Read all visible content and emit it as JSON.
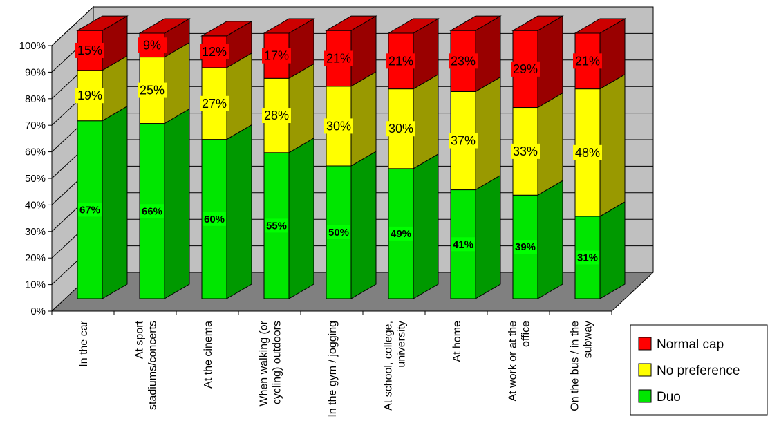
{
  "chart_data": {
    "type": "bar",
    "stacked": true,
    "three_d": true,
    "categories": [
      "In the car",
      "At sport stadiums/concerts",
      "At the cinema",
      "When walking (or cycling) outdoors",
      "In the gym / jogging",
      "At school, college, university",
      "At home",
      "At work or at the office",
      "On the bus / in the subway"
    ],
    "category_lines": [
      [
        "In the car"
      ],
      [
        "At sport",
        "stadiums/concerts"
      ],
      [
        "At the cinema"
      ],
      [
        "When walking (or",
        "cycling) outdoors"
      ],
      [
        "In the gym / jogging"
      ],
      [
        "At school, college,",
        "university"
      ],
      [
        "At home"
      ],
      [
        "At work or at the",
        "office"
      ],
      [
        "On the bus / in the",
        "subway"
      ]
    ],
    "series": [
      {
        "name": "Duo",
        "color": "#00e600",
        "side_color": "#009900",
        "top_color": "#00c000",
        "values": [
          67,
          66,
          60,
          55,
          50,
          49,
          41,
          39,
          31
        ]
      },
      {
        "name": "No preference",
        "color": "#ffff00",
        "side_color": "#999900",
        "top_color": "#cccc00",
        "values": [
          19,
          25,
          27,
          28,
          30,
          30,
          37,
          33,
          48
        ]
      },
      {
        "name": "Normal cap",
        "color": "#ff0000",
        "side_color": "#990000",
        "top_color": "#cc0000",
        "values": [
          15,
          9,
          12,
          17,
          21,
          21,
          23,
          29,
          21
        ]
      }
    ],
    "value_labels": [
      [
        "67%",
        "66%",
        "60%",
        "55%",
        "50%",
        "49%",
        "41%",
        "39%",
        "31%"
      ],
      [
        "19%",
        "25%",
        "27%",
        "28%",
        "30%",
        "30%",
        "37%",
        "33%",
        "48%"
      ],
      [
        "15%",
        "9%",
        "12%",
        "17%",
        "21%",
        "21%",
        "23%",
        "29%",
        "21%"
      ]
    ],
    "y_ticks": [
      "0%",
      "10%",
      "20%",
      "30%",
      "40%",
      "50%",
      "60%",
      "70%",
      "80%",
      "90%",
      "100%"
    ],
    "ylim": [
      0,
      100
    ],
    "gridlines": true,
    "legend_position": "right",
    "legend_order": [
      "Normal cap",
      "No preference",
      "Duo"
    ],
    "wall_color": "#c0c0c0",
    "floor_color": "#808080"
  }
}
